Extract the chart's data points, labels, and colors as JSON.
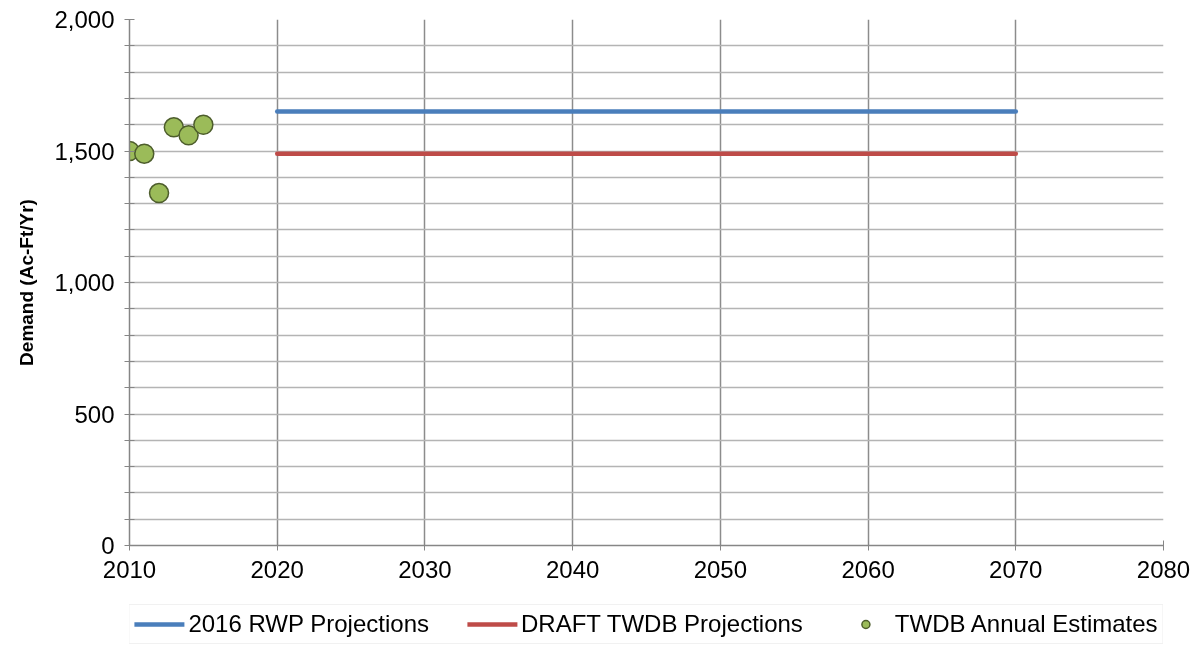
{
  "chart_data": {
    "type": "line",
    "ylabel": "Demand (Ac-Ft/Yr)",
    "xlim": [
      2010,
      2080
    ],
    "xticks": [
      2010,
      2020,
      2030,
      2040,
      2050,
      2060,
      2070,
      2080
    ],
    "ylim": [
      0,
      2000
    ],
    "yticks": [
      0,
      {
        "value": 100,
        "label": null
      },
      {
        "value": 200,
        "label": null
      },
      {
        "value": 300,
        "label": null
      },
      {
        "value": 400,
        "label": null
      },
      500,
      {
        "value": 600,
        "label": null
      },
      {
        "value": 700,
        "label": null
      },
      {
        "value": 800,
        "label": null
      },
      {
        "value": 900,
        "label": null
      },
      {
        "value": 1000,
        "label": "1,000"
      },
      {
        "value": 1100,
        "label": null
      },
      {
        "value": 1200,
        "label": null
      },
      {
        "value": 1300,
        "label": null
      },
      {
        "value": 1400,
        "label": null
      },
      {
        "value": 1500,
        "label": "1,500"
      },
      {
        "value": 1600,
        "label": null
      },
      {
        "value": 1700,
        "label": null
      },
      {
        "value": 1800,
        "label": null
      },
      {
        "value": 1900,
        "label": null
      },
      {
        "value": 2000,
        "label": "2,000"
      }
    ],
    "grid": true,
    "legend": "bottom",
    "series": [
      {
        "name": "2016 RWP Projections",
        "color": "#4a7ebb",
        "x": [
          2020,
          2030,
          2040,
          2050,
          2060,
          2070
        ],
        "values": [
          1650,
          1650,
          1650,
          1650,
          1650,
          1650
        ]
      },
      {
        "name": "DRAFT TWDB Projections",
        "color": "#be4b48",
        "x": [
          2020,
          2030,
          2040,
          2050,
          2060,
          2070
        ],
        "values": [
          1490,
          1490,
          1490,
          1490,
          1490,
          1490
        ]
      },
      {
        "name": "TWDB Annual Estimates",
        "type": "scatter",
        "marker": "circle",
        "color": "#9bbb59",
        "x": [
          2010,
          2011,
          2012,
          2013,
          2014,
          2015
        ],
        "values": [
          1500,
          1490,
          1340,
          1590,
          1560,
          1600
        ]
      }
    ]
  }
}
